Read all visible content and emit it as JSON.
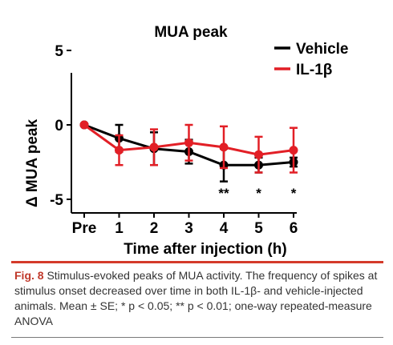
{
  "chart_data": {
    "type": "line",
    "title": "MUA peak",
    "xlabel": "Time after injection (h)",
    "ylabel": "Δ MUA peak",
    "categories": [
      "Pre",
      "1",
      "2",
      "3",
      "4",
      "5",
      "6"
    ],
    "yticks": [
      "5",
      "0",
      "-5"
    ],
    "ylim": [
      -6,
      5.4
    ],
    "series": [
      {
        "name": "Vehicle",
        "color": "#000000",
        "values": [
          0,
          -0.9,
          -1.6,
          -1.8,
          -2.7,
          -2.7,
          -2.5
        ],
        "error": [
          0,
          0.9,
          1.1,
          0.8,
          1.1,
          0.5,
          0.3
        ]
      },
      {
        "name": "IL-1β",
        "color": "#e21f26",
        "values": [
          0,
          -1.7,
          -1.5,
          -1.2,
          -1.5,
          -2.0,
          -1.7
        ],
        "error": [
          0,
          1.0,
          1.2,
          1.2,
          1.4,
          1.2,
          1.5
        ]
      }
    ],
    "significance": [
      {
        "category": "4",
        "label": "**"
      },
      {
        "category": "5",
        "label": "*"
      },
      {
        "category": "6",
        "label": "*"
      }
    ],
    "legend_position": "top-right"
  },
  "caption": {
    "fig_label": "Fig. 8",
    "text": " Stimulus-evoked peaks of MUA activity. The frequency of spikes at stimulus onset decreased over time in both IL-1β- and vehicle-injected animals. Mean ± SE; * p < 0.05; ** p < 0.01; one-way repeated-measure ANOVA"
  }
}
